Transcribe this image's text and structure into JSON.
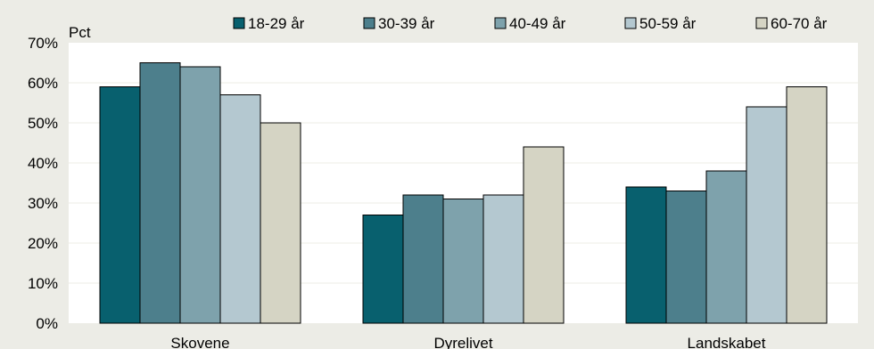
{
  "chart_data": {
    "type": "bar",
    "ylabel": "Pct",
    "ylim": [
      0,
      70
    ],
    "yticks": [
      "0%",
      "10%",
      "20%",
      "30%",
      "40%",
      "50%",
      "60%",
      "70%"
    ],
    "categories": [
      "Skovene",
      "Dyrelivet",
      "Landskabet"
    ],
    "series": [
      {
        "name": "18-29 år",
        "values": [
          59,
          27,
          34
        ]
      },
      {
        "name": "30-39 år",
        "values": [
          65,
          32,
          33
        ]
      },
      {
        "name": "40-49 år",
        "values": [
          64,
          31,
          38
        ]
      },
      {
        "name": "50-59 år",
        "values": [
          57,
          32,
          54
        ]
      },
      {
        "name": "60-70 år",
        "values": [
          50,
          44,
          59
        ]
      }
    ],
    "legend_position": "top",
    "grid": true,
    "colors": {
      "background": "#ecece6",
      "plot_background": "#ffffff",
      "series": [
        "#08606e",
        "#4d7f8c",
        "#7ea2ac",
        "#b4c8d0",
        "#d5d4c4"
      ],
      "bar_outline": "#000000",
      "gridline": "#ecece6"
    }
  }
}
